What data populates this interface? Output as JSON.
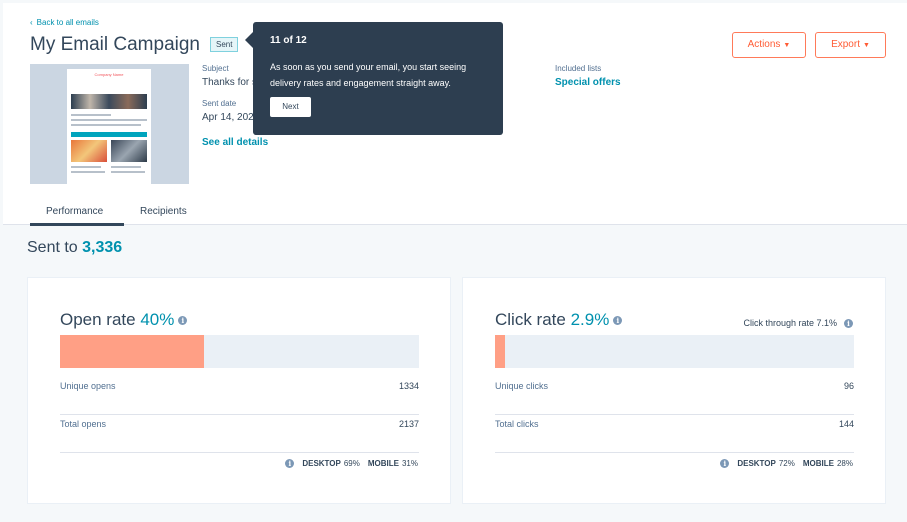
{
  "header": {
    "back_link": "Back to all emails",
    "title": "My Email Campaign",
    "status_badge": "Sent",
    "actions_label": "Actions",
    "export_label": "Export"
  },
  "thumbnail": {
    "logo_text": "Company Name"
  },
  "details": {
    "subject_label": "Subject",
    "subject_value": "Thanks for s",
    "sent_date_label": "Sent date",
    "sent_date_value": "Apr 14, 202",
    "see_all_details": "See all details",
    "included_lists_label": "Included lists",
    "included_lists_value": "Special offers"
  },
  "tooltip": {
    "step": "11 of 12",
    "message": "As soon as you send your email, you start seeing delivery rates and engagement straight away.",
    "next_label": "Next"
  },
  "tabs": [
    {
      "label": "Performance",
      "active": true
    },
    {
      "label": "Recipients",
      "active": false
    }
  ],
  "sent_to": {
    "label": "Sent to",
    "value": "3,336"
  },
  "open_panel": {
    "title": "Open rate",
    "rate": "40%",
    "rate_fraction": 0.4,
    "unique_label": "Unique opens",
    "unique_value": "1334",
    "total_label": "Total opens",
    "total_value": "2137",
    "desktop_label": "DESKTOP",
    "desktop_value": "69%",
    "mobile_label": "MOBILE",
    "mobile_value": "31%"
  },
  "click_panel": {
    "title": "Click rate",
    "rate": "2.9%",
    "rate_fraction": 0.029,
    "ctr_text": "Click through rate 7.1%",
    "unique_label": "Unique clicks",
    "unique_value": "96",
    "total_label": "Total clicks",
    "total_value": "144",
    "desktop_label": "DESKTOP",
    "desktop_value": "72%",
    "mobile_label": "MOBILE",
    "mobile_value": "28%"
  },
  "colors": {
    "accent": "#0091ae",
    "bar_fill": "#ff9f85",
    "button_orange": "#ff5c35",
    "tooltip_bg": "#2d3e50"
  }
}
